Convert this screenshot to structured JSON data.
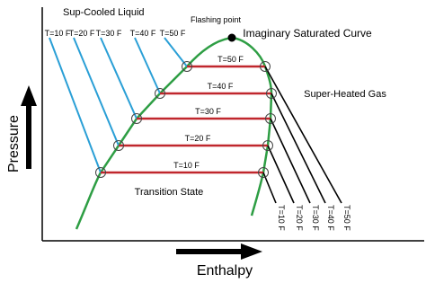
{
  "labels": {
    "liquid": "Sup-Cooled Liquid",
    "flashing": "Flashing point",
    "curve": "Imaginary Saturated Curve",
    "gas": "Super-Heated Gas",
    "transition": "Transition State",
    "y_axis": "Pressure",
    "x_axis": "Enthalpy"
  },
  "liquid_lines": [
    "T=10 F",
    "T=20 F",
    "T=30 F",
    "T=40 F",
    "T=50 F"
  ],
  "saturation_lines": [
    "T=50 F",
    "T=40 F",
    "T=30 F",
    "T=20 F",
    "T=10 F"
  ],
  "gas_lines": [
    "T=10 F",
    "T=20 F",
    "T=30 F",
    "T=40 F",
    "T=50 F"
  ]
}
